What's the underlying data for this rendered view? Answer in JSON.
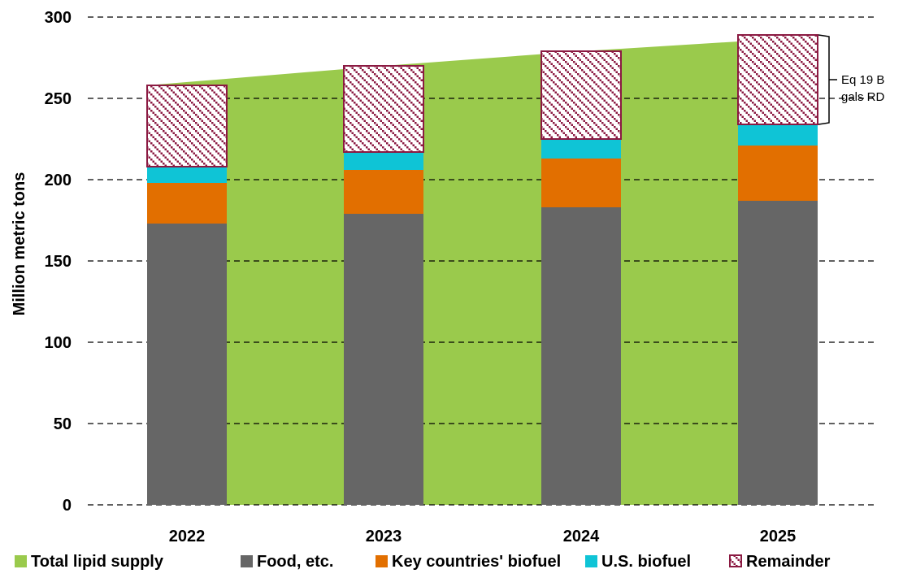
{
  "chart_data": {
    "type": "bar",
    "stacked": true,
    "categories": [
      "2022",
      "2023",
      "2024",
      "2025"
    ],
    "ylabel": "Million metric tons",
    "xlabel": "",
    "ylim": [
      0,
      300
    ],
    "yticks": [
      0,
      50,
      100,
      150,
      200,
      250,
      300
    ],
    "grid": "horizontal dashed",
    "legend_position": "bottom",
    "area": {
      "name": "Total lipid supply",
      "values": [
        258,
        270,
        279,
        288
      ],
      "color": "#9ACA4C"
    },
    "series": [
      {
        "name": "Food, etc.",
        "values": [
          173,
          179,
          183,
          187
        ],
        "color": "#666666"
      },
      {
        "name": "Key countries' biofuel",
        "values": [
          25,
          27,
          30,
          34
        ],
        "color": "#E26F00"
      },
      {
        "name": "U.S. biofuel",
        "values": [
          10,
          11,
          12,
          13
        ],
        "color": "#0FC4D6"
      },
      {
        "name": "Remainder",
        "values": [
          50,
          53,
          54,
          55
        ],
        "color": "#8B1A42",
        "pattern": "diagonal-checker"
      }
    ],
    "annotation": {
      "lines": [
        "Eq 19 B",
        "gals RD"
      ],
      "target_category": "2025",
      "target_series": "Remainder"
    }
  }
}
